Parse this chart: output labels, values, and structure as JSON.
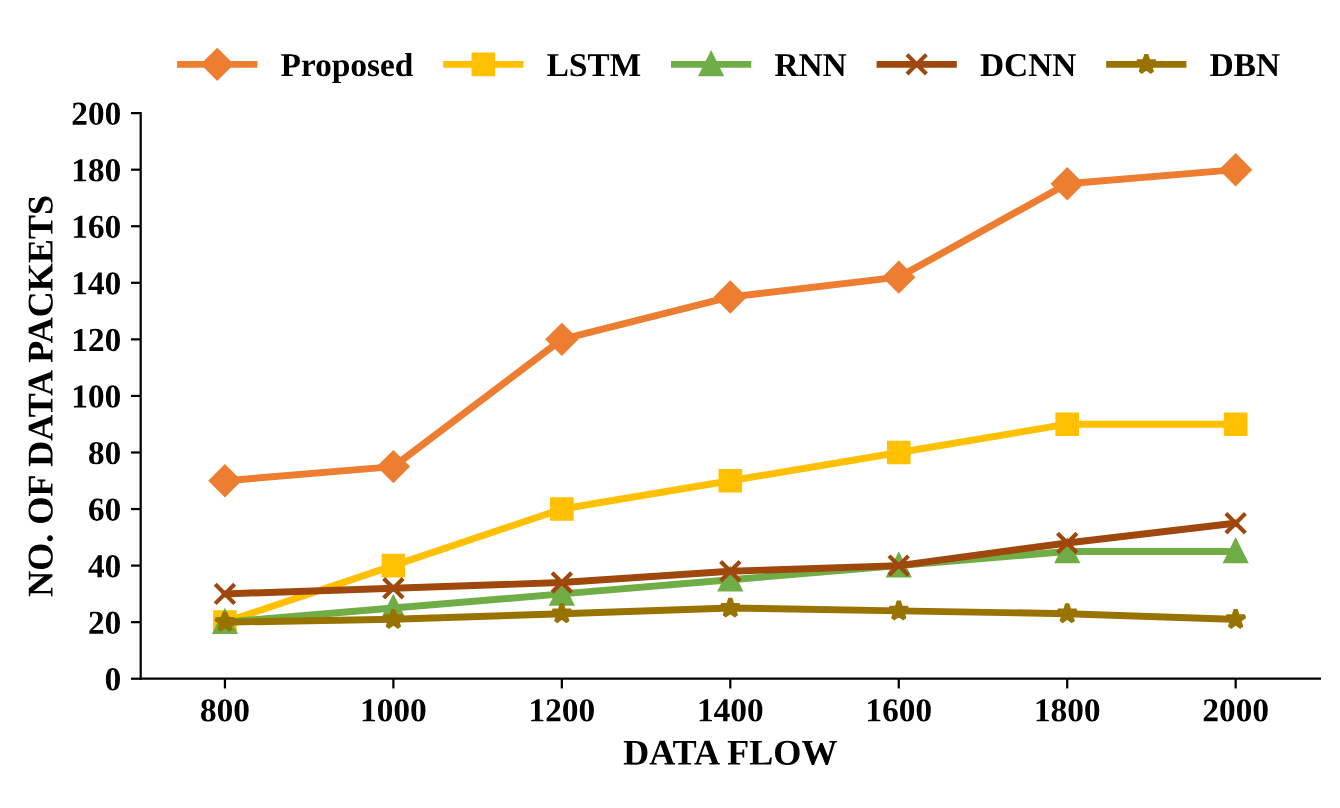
{
  "chart_data": {
    "type": "line",
    "xlabel": "DATA FLOW",
    "ylabel": "NO. OF DATA PACKETS",
    "categories": [
      "800",
      "1000",
      "1200",
      "1400",
      "1600",
      "1800",
      "2000"
    ],
    "series": [
      {
        "name": "Proposed",
        "color": "#ed7d31",
        "marker": "diamond",
        "values": [
          70,
          75,
          120,
          135,
          142,
          175,
          180
        ]
      },
      {
        "name": "LSTM",
        "color": "#ffc000",
        "marker": "square",
        "values": [
          20,
          40,
          60,
          70,
          80,
          90,
          90
        ]
      },
      {
        "name": "RNN",
        "color": "#70ad47",
        "marker": "triangle",
        "values": [
          20,
          25,
          30,
          35,
          40,
          45,
          45
        ]
      },
      {
        "name": "DCNN",
        "color": "#9e480e",
        "marker": "cross",
        "values": [
          30,
          32,
          34,
          38,
          40,
          48,
          55
        ]
      },
      {
        "name": "DBN",
        "color": "#997300",
        "marker": "star",
        "values": [
          20,
          21,
          23,
          25,
          24,
          23,
          21
        ]
      }
    ],
    "ylim": [
      0,
      200
    ],
    "yticks": [
      0,
      20,
      40,
      60,
      80,
      100,
      120,
      140,
      160,
      180,
      200
    ],
    "grid": false,
    "legend": "top"
  }
}
